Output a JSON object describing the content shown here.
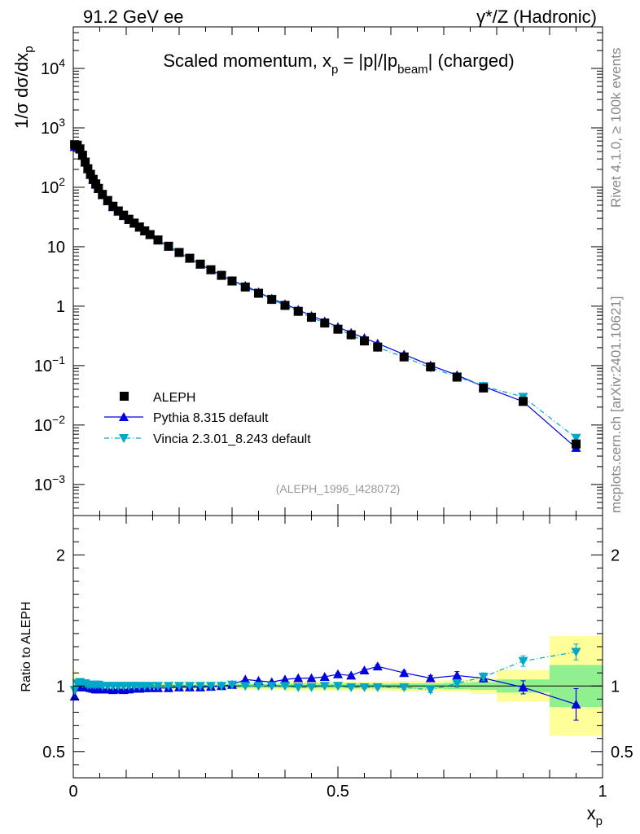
{
  "header": {
    "left": "91.2 GeV ee",
    "right": "γ*/Z (Hadronic)"
  },
  "side_labels": {
    "top": "Rivet 4.1.0, ≥ 100k events",
    "bottom": "mcplots.cern.ch [arXiv:2401.10621]"
  },
  "colors": {
    "data": "#000000",
    "pythia": "#0000e0",
    "vincia": "#00a8c8",
    "band_inner": "#90f090",
    "band_outer": "#ffff99",
    "ref_line": "#000000"
  },
  "chart_data": [
    {
      "id": "main",
      "type": "line",
      "title_parts": {
        "prefix": "Scaled momentum, x",
        "sub1": "p",
        "mid1": " = |p|/|p",
        "sub2": "beam",
        "suffix": "| (charged)"
      },
      "ylabel_parts": {
        "prefix": "1/σ  dσ/dx",
        "sub": "p"
      },
      "yscale": "log",
      "xlim": [
        0,
        1
      ],
      "ylim": [
        0.0003,
        50000
      ],
      "y_ticks": [
        {
          "value": 10000,
          "base": "10",
          "exp": "4"
        },
        {
          "value": 1000,
          "base": "10",
          "exp": "3"
        },
        {
          "value": 100,
          "base": "10",
          "exp": "2"
        },
        {
          "value": 10,
          "base": "10",
          "exp": ""
        },
        {
          "value": 1,
          "base": "1",
          "exp": ""
        },
        {
          "value": 0.1,
          "base": "10",
          "exp": "−1"
        },
        {
          "value": 0.01,
          "base": "10",
          "exp": "−2"
        },
        {
          "value": 0.001,
          "base": "10",
          "exp": "−3"
        }
      ],
      "watermark": "(ALEPH_1996_I428072)",
      "legend": {
        "position": "bottom-left",
        "entries": [
          "ALEPH",
          "Pythia 8.315 default",
          "Vincia 2.3.01_8.243 default"
        ]
      },
      "series": [
        {
          "name": "ALEPH",
          "marker": "square",
          "x": [
            0.0025,
            0.0075,
            0.0125,
            0.0175,
            0.0225,
            0.0275,
            0.0325,
            0.0375,
            0.0425,
            0.0475,
            0.055,
            0.065,
            0.075,
            0.085,
            0.095,
            0.105,
            0.115,
            0.125,
            0.135,
            0.145,
            0.16,
            0.18,
            0.2,
            0.22,
            0.24,
            0.26,
            0.28,
            0.3,
            0.325,
            0.35,
            0.375,
            0.4,
            0.425,
            0.45,
            0.475,
            0.5,
            0.525,
            0.55,
            0.575,
            0.625,
            0.675,
            0.725,
            0.775,
            0.85,
            0.95
          ],
          "y": [
            520,
            510,
            440,
            345,
            265,
            205,
            165,
            136,
            114,
            96,
            76,
            60,
            48,
            40,
            34,
            29,
            25,
            21.5,
            18.5,
            16,
            13,
            10.2,
            8.0,
            6.4,
            5.1,
            4.1,
            3.3,
            2.65,
            2.1,
            1.65,
            1.3,
            1.03,
            0.82,
            0.65,
            0.52,
            0.41,
            0.33,
            0.26,
            0.205,
            0.14,
            0.095,
            0.064,
            0.042,
            0.025,
            0.0048
          ],
          "ratio": [
            1.0,
            1.0,
            1.0,
            1.0,
            1.0,
            1.0,
            1.0,
            1.0,
            1.0,
            1.0,
            1.0,
            1.0,
            1.0,
            1.0,
            1.0,
            1.0,
            1.0,
            1.0,
            1.0,
            1.0,
            1.0,
            1.0,
            1.0,
            1.0,
            1.0,
            1.0,
            1.0,
            1.0,
            1.0,
            1.0,
            1.0,
            1.0,
            1.0,
            1.0,
            1.0,
            1.0,
            1.0,
            1.0,
            1.0,
            1.0,
            1.0,
            1.0,
            1.0,
            1.0,
            1.0
          ]
        },
        {
          "name": "Pythia 8.315 default",
          "marker": "triangle-up",
          "x": [
            0.0025,
            0.0075,
            0.0125,
            0.0175,
            0.0225,
            0.0275,
            0.0325,
            0.0375,
            0.0425,
            0.0475,
            0.055,
            0.065,
            0.075,
            0.085,
            0.095,
            0.105,
            0.115,
            0.125,
            0.135,
            0.145,
            0.16,
            0.18,
            0.2,
            0.22,
            0.24,
            0.26,
            0.28,
            0.3,
            0.325,
            0.35,
            0.375,
            0.4,
            0.425,
            0.45,
            0.475,
            0.5,
            0.525,
            0.55,
            0.575,
            0.625,
            0.675,
            0.725,
            0.775,
            0.85,
            0.95
          ],
          "ratio": [
            0.92,
            0.99,
            1.01,
            1.0,
            0.99,
            0.99,
            0.985,
            0.98,
            0.975,
            0.975,
            0.975,
            0.975,
            0.97,
            0.975,
            0.97,
            0.975,
            0.98,
            0.98,
            0.985,
            0.985,
            0.985,
            0.985,
            0.99,
            0.99,
            0.99,
            0.995,
            1.0,
            1.01,
            1.05,
            1.04,
            1.03,
            1.05,
            1.06,
            1.06,
            1.07,
            1.09,
            1.08,
            1.12,
            1.15,
            1.1,
            1.06,
            1.08,
            1.06,
            0.99,
            0.86
          ],
          "ratio_err": [
            0,
            0,
            0,
            0,
            0,
            0,
            0,
            0,
            0,
            0,
            0,
            0,
            0,
            0,
            0,
            0,
            0,
            0,
            0,
            0,
            0,
            0,
            0,
            0,
            0,
            0,
            0,
            0,
            0,
            0,
            0,
            0,
            0,
            0,
            0,
            0.01,
            0.01,
            0.01,
            0.012,
            0.015,
            0.02,
            0.03,
            0.03,
            0.05,
            0.12
          ]
        },
        {
          "name": "Vincia 2.3.01_8.243 default",
          "marker": "triangle-down",
          "x": [
            0.0025,
            0.0075,
            0.0125,
            0.0175,
            0.0225,
            0.0275,
            0.0325,
            0.0375,
            0.0425,
            0.0475,
            0.055,
            0.065,
            0.075,
            0.085,
            0.095,
            0.105,
            0.115,
            0.125,
            0.135,
            0.145,
            0.16,
            0.18,
            0.2,
            0.22,
            0.24,
            0.26,
            0.28,
            0.3,
            0.325,
            0.35,
            0.375,
            0.4,
            0.425,
            0.45,
            0.475,
            0.5,
            0.525,
            0.55,
            0.575,
            0.625,
            0.675,
            0.725,
            0.775,
            0.85,
            0.95
          ],
          "ratio": [
            0.97,
            1.02,
            1.03,
            1.02,
            1.02,
            1.01,
            1.01,
            1.01,
            1.01,
            1.01,
            1.0,
            1.0,
            1.0,
            1.0,
            1.0,
            1.0,
            1.0,
            1.0,
            1.0,
            1.0,
            1.0,
            1.0,
            1.0,
            1.0,
            1.0,
            1.0,
            1.0,
            1.01,
            1.0,
            1.0,
            1.0,
            1.0,
            0.99,
            0.99,
            1.0,
            1.0,
            0.99,
            0.99,
            0.99,
            0.99,
            0.97,
            1.02,
            1.07,
            1.19,
            1.26
          ],
          "ratio_err": [
            0,
            0,
            0,
            0,
            0,
            0,
            0,
            0,
            0,
            0,
            0,
            0,
            0,
            0,
            0,
            0,
            0,
            0,
            0,
            0,
            0,
            0,
            0,
            0,
            0,
            0,
            0,
            0,
            0,
            0,
            0,
            0,
            0,
            0,
            0,
            0.01,
            0.01,
            0.01,
            0.012,
            0.015,
            0.02,
            0.03,
            0.03,
            0.04,
            0.06
          ]
        }
      ]
    },
    {
      "id": "ratio",
      "type": "line",
      "ylabel": "Ratio to ALEPH",
      "xlabel_parts": {
        "prefix": "x",
        "sub": "p"
      },
      "xlim": [
        0,
        1
      ],
      "ylim": [
        0.3,
        2.3
      ],
      "x_ticks": [
        {
          "value": 0,
          "label": "0"
        },
        {
          "value": 0.5,
          "label": "0.5"
        },
        {
          "value": 1,
          "label": "1"
        }
      ],
      "y_ticks": [
        {
          "value": 2,
          "label": "2"
        },
        {
          "value": 1,
          "label": "1"
        },
        {
          "value": 0.5,
          "label": "0.5"
        }
      ],
      "bands": [
        {
          "x0": 0.0,
          "x1": 0.005,
          "inner": 0.03,
          "outer": 0.12
        },
        {
          "x0": 0.005,
          "x1": 0.05,
          "inner": 0.015,
          "outer": 0.03
        },
        {
          "x0": 0.05,
          "x1": 0.3,
          "inner": 0.012,
          "outer": 0.022
        },
        {
          "x0": 0.3,
          "x1": 0.4,
          "inner": 0.015,
          "outer": 0.025
        },
        {
          "x0": 0.4,
          "x1": 0.6,
          "inner": 0.018,
          "outer": 0.035
        },
        {
          "x0": 0.6,
          "x1": 0.7,
          "inner": 0.02,
          "outer": 0.04
        },
        {
          "x0": 0.7,
          "x1": 0.75,
          "inner": 0.025,
          "outer": 0.045
        },
        {
          "x0": 0.75,
          "x1": 0.8,
          "inner": 0.03,
          "outer": 0.06
        },
        {
          "x0": 0.8,
          "x1": 0.9,
          "inner": 0.05,
          "outer": 0.12
        },
        {
          "x0": 0.9,
          "x1": 1.0,
          "inner": 0.16,
          "outer": 0.38
        }
      ]
    }
  ]
}
